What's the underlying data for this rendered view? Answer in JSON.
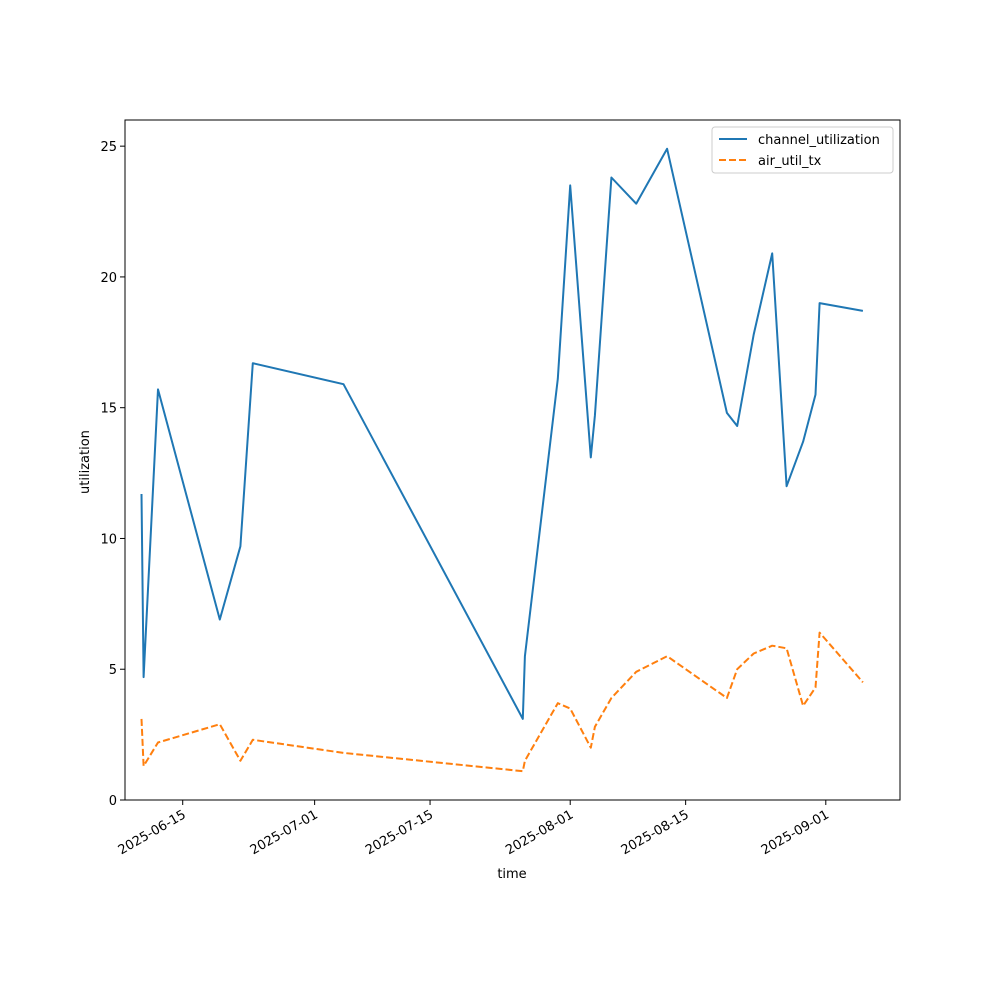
{
  "chart_data": {
    "type": "line",
    "xlabel": "time",
    "ylabel": "utilization",
    "ylim": [
      0,
      26
    ],
    "xlim": [
      "2025-06-08",
      "2025-09-10"
    ],
    "x_ticks": [
      "2025-06-15",
      "2025-07-01",
      "2025-07-15",
      "2025-08-01",
      "2025-08-15",
      "2025-09-01"
    ],
    "y_ticks": [
      0,
      5,
      10,
      15,
      20,
      25
    ],
    "grid": false,
    "legend_position": "top-right",
    "colors": {
      "channel_utilization": "#1f77b4",
      "air_util_tx": "#ff7f0e"
    },
    "series": [
      {
        "name": "channel_utilization",
        "style": "solid",
        "color": "#1f77b4",
        "points": [
          {
            "x": "2025-06-10T00:00",
            "y": 11.7
          },
          {
            "x": "2025-06-10T06:00",
            "y": 4.7
          },
          {
            "x": "2025-06-12T00:00",
            "y": 15.7
          },
          {
            "x": "2025-06-19T12:00",
            "y": 6.9
          },
          {
            "x": "2025-06-22T00:00",
            "y": 9.7
          },
          {
            "x": "2025-06-23T12:00",
            "y": 16.7
          },
          {
            "x": "2025-07-04T12:00",
            "y": 15.9
          },
          {
            "x": "2025-07-26T06:00",
            "y": 3.1
          },
          {
            "x": "2025-07-26T12:00",
            "y": 5.5
          },
          {
            "x": "2025-07-30T12:00",
            "y": 16.1
          },
          {
            "x": "2025-08-01T00:00",
            "y": 23.5
          },
          {
            "x": "2025-08-03T12:00",
            "y": 13.1
          },
          {
            "x": "2025-08-04T00:00",
            "y": 14.7
          },
          {
            "x": "2025-08-06T00:00",
            "y": 23.8
          },
          {
            "x": "2025-08-09T00:00",
            "y": 22.8
          },
          {
            "x": "2025-08-12T18:00",
            "y": 24.9
          },
          {
            "x": "2025-08-20T00:00",
            "y": 14.8
          },
          {
            "x": "2025-08-21T06:00",
            "y": 14.3
          },
          {
            "x": "2025-08-23T06:00",
            "y": 17.8
          },
          {
            "x": "2025-08-25T12:00",
            "y": 20.9
          },
          {
            "x": "2025-08-27T06:00",
            "y": 12.0
          },
          {
            "x": "2025-08-29T06:00",
            "y": 13.7
          },
          {
            "x": "2025-08-30T18:00",
            "y": 15.5
          },
          {
            "x": "2025-08-31T06:00",
            "y": 19.0
          },
          {
            "x": "2025-09-05T12:00",
            "y": 18.7
          }
        ]
      },
      {
        "name": "air_util_tx",
        "style": "dashed",
        "color": "#ff7f0e",
        "points": [
          {
            "x": "2025-06-10T00:00",
            "y": 3.1
          },
          {
            "x": "2025-06-10T06:00",
            "y": 1.3
          },
          {
            "x": "2025-06-12T00:00",
            "y": 2.2
          },
          {
            "x": "2025-06-19T12:00",
            "y": 2.9
          },
          {
            "x": "2025-06-22T00:00",
            "y": 1.5
          },
          {
            "x": "2025-06-23T12:00",
            "y": 2.3
          },
          {
            "x": "2025-07-04T12:00",
            "y": 1.8
          },
          {
            "x": "2025-07-26T06:00",
            "y": 1.1
          },
          {
            "x": "2025-07-26T12:00",
            "y": 1.5
          },
          {
            "x": "2025-07-30T12:00",
            "y": 3.7
          },
          {
            "x": "2025-08-01T00:00",
            "y": 3.5
          },
          {
            "x": "2025-08-03T12:00",
            "y": 2.0
          },
          {
            "x": "2025-08-04T00:00",
            "y": 2.8
          },
          {
            "x": "2025-08-06T00:00",
            "y": 3.9
          },
          {
            "x": "2025-08-09T00:00",
            "y": 4.9
          },
          {
            "x": "2025-08-12T18:00",
            "y": 5.5
          },
          {
            "x": "2025-08-20T00:00",
            "y": 3.9
          },
          {
            "x": "2025-08-21T06:00",
            "y": 5.0
          },
          {
            "x": "2025-08-23T06:00",
            "y": 5.6
          },
          {
            "x": "2025-08-25T12:00",
            "y": 5.9
          },
          {
            "x": "2025-08-27T06:00",
            "y": 5.8
          },
          {
            "x": "2025-08-29T06:00",
            "y": 3.6
          },
          {
            "x": "2025-08-30T18:00",
            "y": 4.3
          },
          {
            "x": "2025-08-31T06:00",
            "y": 6.4
          },
          {
            "x": "2025-09-05T12:00",
            "y": 4.5
          }
        ]
      }
    ]
  }
}
